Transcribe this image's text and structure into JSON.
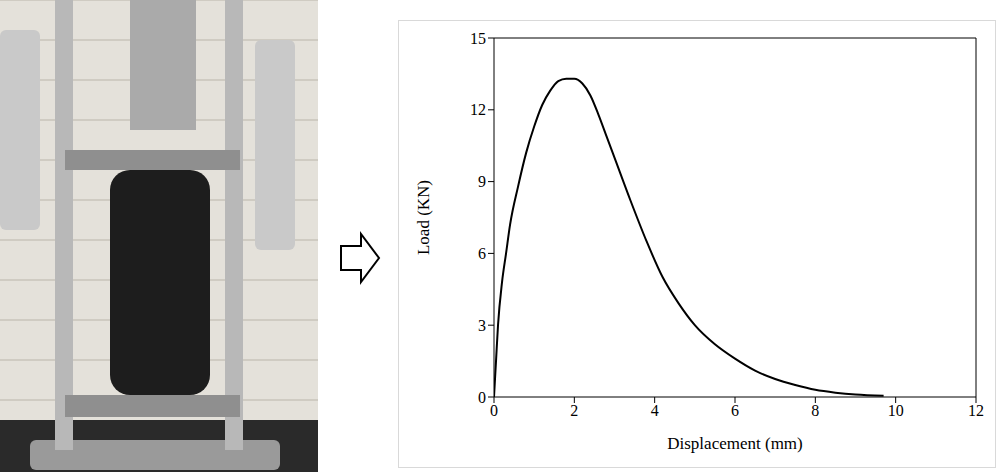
{
  "chart_data": {
    "type": "line",
    "x_label": "Displacement (mm)",
    "y_label": "Load (KN)",
    "color": "#000000",
    "grid": false,
    "xlim": [
      0,
      12
    ],
    "ylim": [
      0,
      15
    ],
    "xticks": [
      0,
      2,
      4,
      6,
      8,
      10,
      12
    ],
    "yticks": [
      0,
      3,
      6,
      9,
      12,
      15
    ],
    "x": [
      0,
      0.05,
      0.1,
      0.2,
      0.3,
      0.4,
      0.6,
      0.8,
      1.0,
      1.2,
      1.4,
      1.6,
      1.8,
      2.0,
      2.2,
      2.4,
      2.6,
      2.8,
      3.0,
      3.4,
      3.8,
      4.2,
      4.6,
      5.0,
      5.5,
      6.0,
      6.5,
      7.0,
      7.5,
      8.0,
      8.5,
      9.0,
      9.7
    ],
    "values": [
      0,
      1.5,
      3,
      4.8,
      6,
      7.2,
      8.8,
      10.2,
      11.3,
      12.2,
      12.8,
      13.2,
      13.3,
      13.3,
      13.1,
      12.6,
      11.8,
      10.9,
      10.0,
      8.2,
      6.5,
      5.0,
      3.9,
      3.0,
      2.2,
      1.6,
      1.1,
      0.75,
      0.5,
      0.3,
      0.18,
      0.1,
      0.05
    ]
  }
}
